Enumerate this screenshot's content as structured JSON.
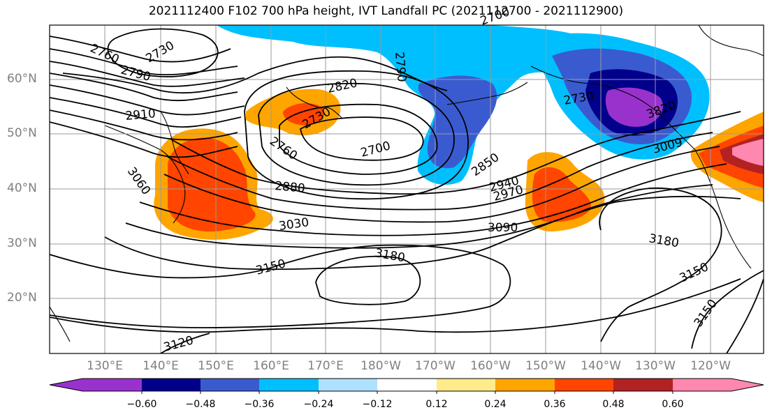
{
  "title": "2021112400 F102 700 hPa height, IVT Landfall PC (2021112700 - 2021112900)",
  "lat_labels": [
    "60°N",
    "50°N",
    "40°N",
    "30°N",
    "20°N"
  ],
  "lon_labels": [
    "130°E",
    "140°E",
    "150°E",
    "160°E",
    "170°E",
    "180°W",
    "170°W",
    "160°W",
    "150°W",
    "140°W",
    "130°W",
    "120°W"
  ],
  "colorbar": {
    "colors": [
      "#9932cc",
      "#00008b",
      "#3a5bd0",
      "#00bfff",
      "#b0e0ff",
      "#ffffff",
      "#ffeb8a",
      "#ffa500",
      "#ff4500",
      "#b22222",
      "#ff88b0"
    ],
    "tick_labels": [
      "−0.60",
      "−0.48",
      "−0.36",
      "−0.24",
      "−0.12",
      "0.12",
      "0.24",
      "0.36",
      "0.48",
      "0.60"
    ]
  },
  "contour_labels": [
    "2760",
    "2730",
    "2790",
    "2910",
    "2820",
    "2790",
    "2700",
    "2730",
    "2760",
    "2730",
    "3820",
    "2700",
    "3060",
    "2880",
    "2850",
    "2940",
    "2970",
    "3009",
    "3030",
    "3090",
    "3180",
    "3180",
    "3150",
    "3150",
    "3150",
    "3120"
  ]
}
